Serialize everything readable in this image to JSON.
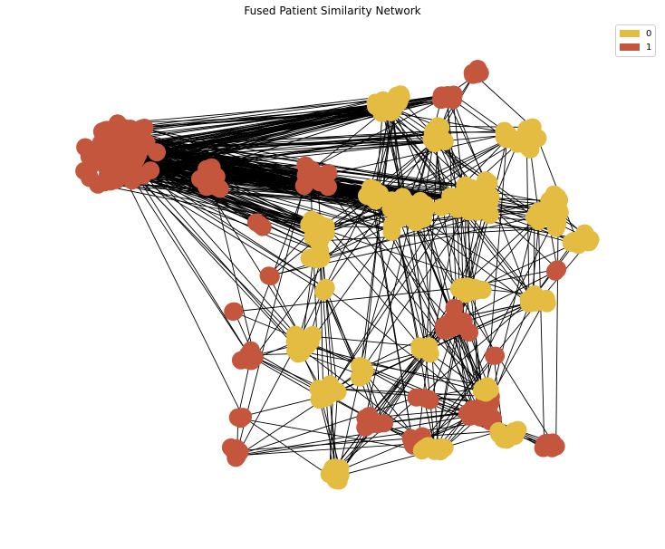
{
  "title": "Fused Patient Similarity Network",
  "legend": {
    "items": [
      {
        "label": "0",
        "color": "#e3bc41"
      },
      {
        "label": "1",
        "color": "#c4563e"
      }
    ]
  },
  "colors": {
    "edge": "#000000",
    "class0": "#e3bc41",
    "class1": "#c4563e"
  }
}
